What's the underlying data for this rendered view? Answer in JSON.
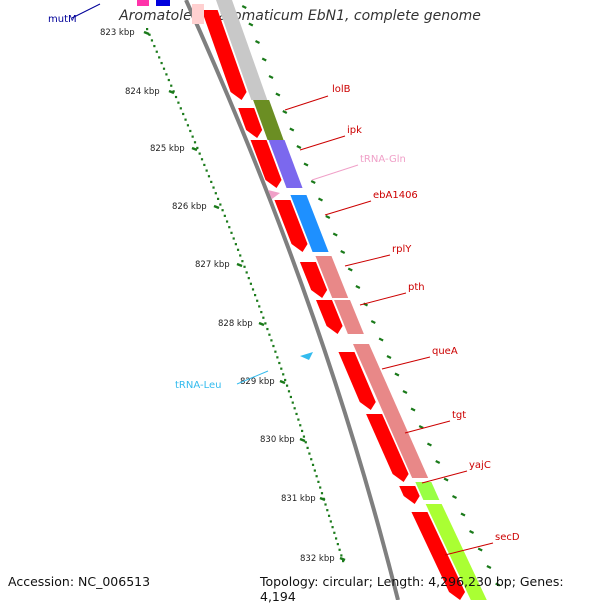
{
  "title": "Aromatoleum aromaticum EbN1, complete genome",
  "footer": {
    "accession": "Accession: NC_006513",
    "topology": "Topology: circular; Length: 4,296,230 bp; Genes: 4,194"
  },
  "colors": {
    "cds_forward": "#ff0000",
    "cds_reverse": "#e88888",
    "backbone": "#7f7f7f",
    "tick_dots": "#1a7a1a",
    "gene_label_red": "#cc0000",
    "trna_pink": "#f0a0c8",
    "trna_cyan": "#33bbee",
    "mutm_label": "#000099"
  },
  "scale_ticks": [
    "823 kbp",
    "824 kbp",
    "825 kbp",
    "826 kbp",
    "827 kbp",
    "828 kbp",
    "829 kbp",
    "830 kbp",
    "831 kbp",
    "832 kbp"
  ],
  "gene_labels": [
    {
      "name": "mutM",
      "color": "#000099"
    },
    {
      "name": "lolB",
      "color": "#cc0000"
    },
    {
      "name": "ipk",
      "color": "#cc0000"
    },
    {
      "name": "tRNA-Gln",
      "color": "#f0a0c8"
    },
    {
      "name": "ebA1406",
      "color": "#cc0000"
    },
    {
      "name": "rplY",
      "color": "#cc0000"
    },
    {
      "name": "pth",
      "color": "#cc0000"
    },
    {
      "name": "queA",
      "color": "#cc0000"
    },
    {
      "name": "tRNA-Leu",
      "color": "#33bbee"
    },
    {
      "name": "tgt",
      "color": "#cc0000"
    },
    {
      "name": "yajC",
      "color": "#cc0000"
    },
    {
      "name": "secD",
      "color": "#cc0000"
    }
  ]
}
